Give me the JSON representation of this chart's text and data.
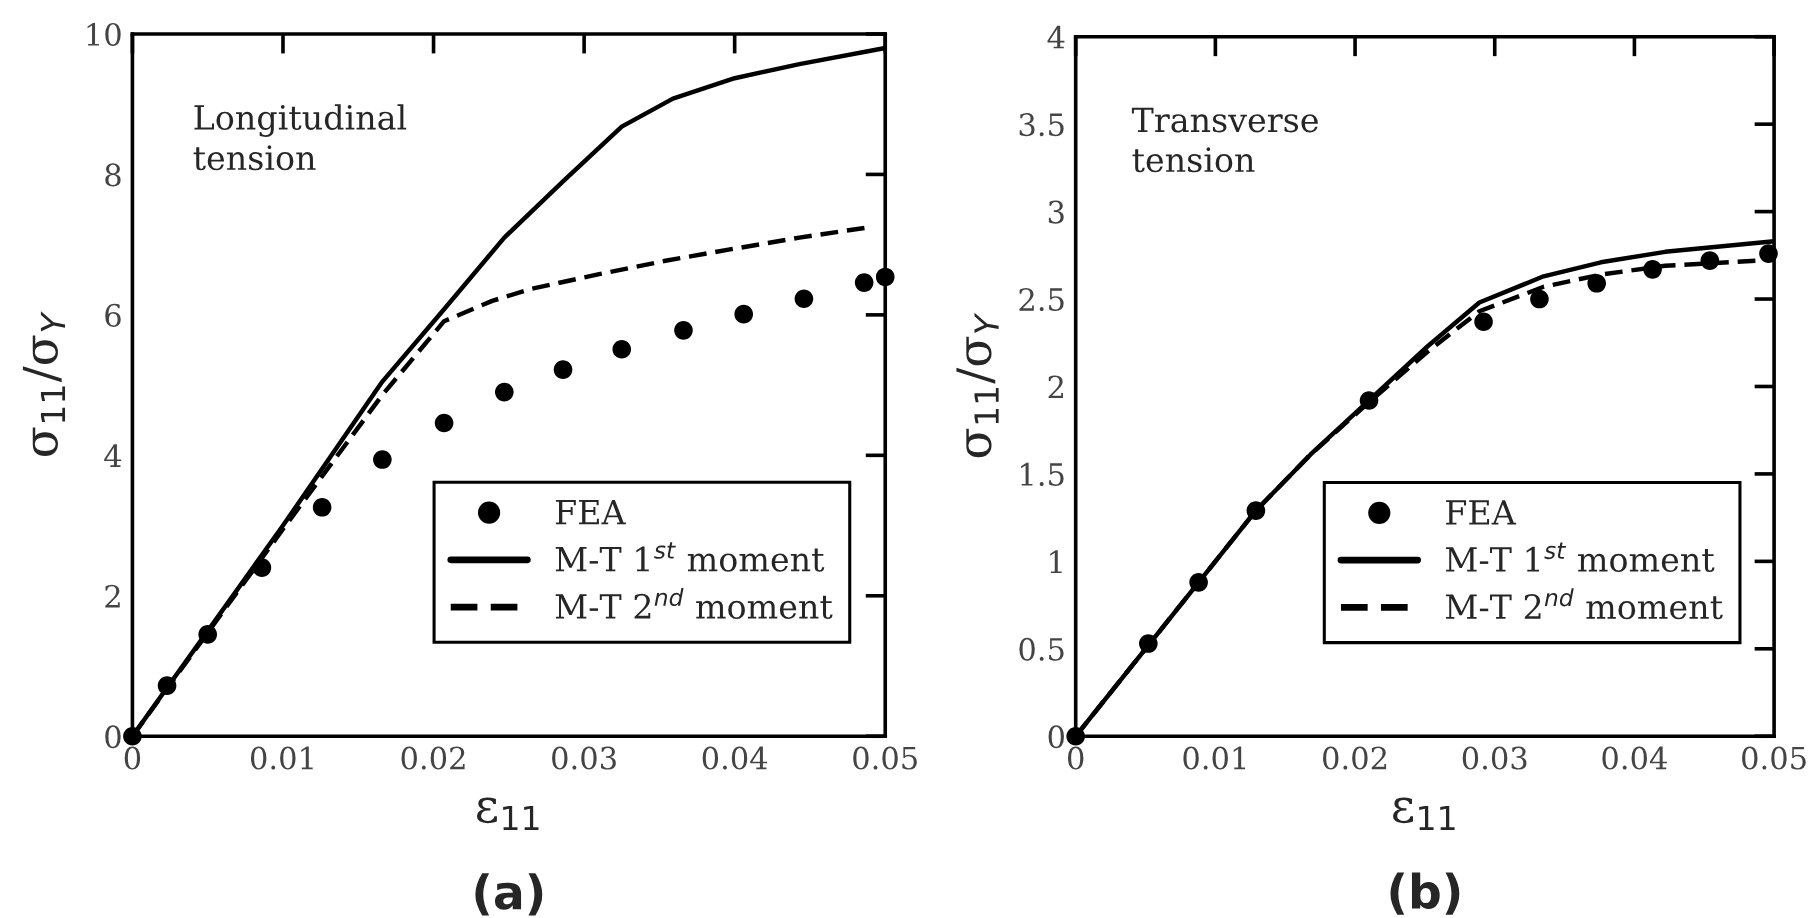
{
  "chart_data": [
    {
      "type": "line",
      "title": "(a)",
      "xlabel": "ε$_{11}$",
      "ylabel": "σ$_{11}$/σ$_{Y}$",
      "annotations": [
        "Longitudinal\ntension"
      ],
      "xlim": [
        0,
        0.05
      ],
      "ylim": [
        0,
        10
      ],
      "xticks": [
        0,
        0.01,
        0.02,
        0.03,
        0.04,
        0.05
      ],
      "yticks": [
        0,
        2,
        4,
        6,
        8,
        10
      ],
      "legend": "bottom right",
      "grid": false,
      "series": [
        {
          "name": "FEA",
          "type": "scatter",
          "marker": "circle",
          "color": "#000000",
          "x": [
            0,
            0.0023,
            0.005,
            0.0086,
            0.0126,
            0.0166,
            0.0207,
            0.0247,
            0.0286,
            0.0325,
            0.0366,
            0.0406,
            0.0446,
            0.0486,
            0.05
          ],
          "values": [
            0,
            0.72,
            1.45,
            2.4,
            3.26,
            3.94,
            4.46,
            4.9,
            5.22,
            5.51,
            5.78,
            6.01,
            6.23,
            6.46,
            6.54
          ]
        },
        {
          "name": "M-T 1$^{st}$ moment",
          "line_style": "solid",
          "color": "#000000",
          "x": [
            0,
            0.01,
            0.0166,
            0.0207,
            0.0247,
            0.0286,
            0.0325,
            0.0359,
            0.04,
            0.0443,
            0.05
          ],
          "values": [
            0,
            3.0,
            5.05,
            6.08,
            7.1,
            7.9,
            8.68,
            9.08,
            9.37,
            9.57,
            9.8
          ]
        },
        {
          "name": "M-T 2$^{nd}$ moment",
          "line_style": "dashed",
          "color": "#000000",
          "x": [
            0,
            0.01,
            0.0166,
            0.0207,
            0.0239,
            0.0265,
            0.031,
            0.0354,
            0.0399,
            0.0443,
            0.049
          ],
          "values": [
            0,
            2.95,
            4.86,
            5.91,
            6.2,
            6.37,
            6.58,
            6.77,
            6.94,
            7.1,
            7.25
          ]
        }
      ]
    },
    {
      "type": "line",
      "title": "(b)",
      "xlabel": "ε$_{11}$",
      "ylabel": "σ$_{11}$/σ$_{Y}$",
      "annotations": [
        "Transverse\ntension"
      ],
      "xlim": [
        0,
        0.05
      ],
      "ylim": [
        0,
        4
      ],
      "xticks": [
        0,
        0.01,
        0.02,
        0.03,
        0.04,
        0.05
      ],
      "yticks": [
        0,
        0.5,
        1,
        1.5,
        2,
        2.5,
        3,
        3.5,
        4
      ],
      "legend": "bottom right",
      "grid": false,
      "series": [
        {
          "name": "FEA",
          "type": "scatter",
          "marker": "circle",
          "color": "#000000",
          "x": [
            0,
            0.0052,
            0.0088,
            0.0129,
            0.021,
            0.0292,
            0.0332,
            0.0373,
            0.0413,
            0.0454,
            0.0496
          ],
          "values": [
            0,
            0.53,
            0.88,
            1.29,
            1.92,
            2.37,
            2.5,
            2.59,
            2.67,
            2.72,
            2.76
          ]
        },
        {
          "name": "M-T 1$^{st}$ moment",
          "line_style": "solid",
          "color": "#000000",
          "x": [
            0,
            0.0088,
            0.0129,
            0.0168,
            0.021,
            0.0252,
            0.0289,
            0.0335,
            0.0376,
            0.0422,
            0.05
          ],
          "values": [
            0,
            0.88,
            1.29,
            1.61,
            1.92,
            2.23,
            2.48,
            2.63,
            2.71,
            2.77,
            2.83
          ]
        },
        {
          "name": "M-T 2$^{nd}$ moment",
          "line_style": "dashed",
          "color": "#000000",
          "x": [
            0,
            0.0088,
            0.0129,
            0.0168,
            0.021,
            0.0252,
            0.0289,
            0.0335,
            0.0376,
            0.0422,
            0.049
          ],
          "values": [
            0,
            0.88,
            1.29,
            1.61,
            1.91,
            2.2,
            2.43,
            2.57,
            2.64,
            2.69,
            2.72
          ]
        }
      ]
    }
  ]
}
